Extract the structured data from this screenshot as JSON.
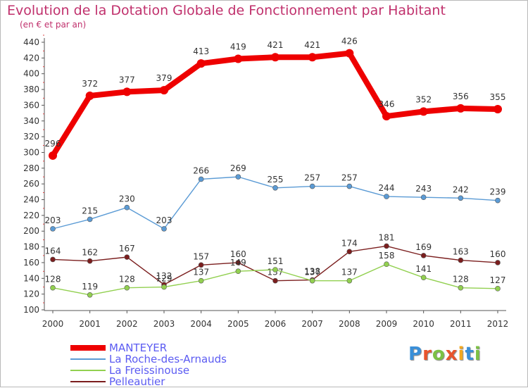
{
  "header": {
    "title": "Evolution de la Dotation Globale de Fonctionnement par Habitant",
    "subtitle": "(en € et par an)"
  },
  "logo": {
    "text": "Proxiti",
    "colors": [
      "#3a8fd8",
      "#e8542c",
      "#7cc144",
      "#e8542c",
      "#f3a81f",
      "#3a8fd8",
      "#7cc144"
    ]
  },
  "chart_data": {
    "type": "line",
    "title": "Evolution de la Dotation Globale de Fonctionnement par Habitant",
    "subtitle": "(en € et par an)",
    "xlabel": "",
    "ylabel": "",
    "x": [
      "2000",
      "2001",
      "2002",
      "2003",
      "2004",
      "2005",
      "2006",
      "2007",
      "2008",
      "2009",
      "2010",
      "2011",
      "2012"
    ],
    "ylim": [
      100,
      440
    ],
    "yticks": [
      100,
      120,
      140,
      160,
      180,
      200,
      220,
      240,
      260,
      280,
      300,
      320,
      340,
      360,
      380,
      400,
      420,
      440
    ],
    "grid": false,
    "legend_position": "bottom-left",
    "series": [
      {
        "name": "MANTEYER",
        "color": "#ee0000",
        "values": [
          296,
          372,
          377,
          379,
          413,
          419,
          421,
          421,
          426,
          346,
          352,
          356,
          355
        ],
        "labels": [
          "296",
          "372",
          "377",
          "379",
          "413",
          "419",
          "421",
          "421",
          "426",
          "346",
          "352",
          "356",
          "355"
        ]
      },
      {
        "name": "La Roche-des-Arnauds",
        "color": "#5b9bd5",
        "values": [
          203,
          215,
          230,
          203,
          266,
          269,
          255,
          257,
          257,
          244,
          243,
          242,
          239
        ],
        "labels": [
          "203",
          "215",
          "230",
          "203",
          "266",
          "269",
          "255",
          "257",
          "257",
          "244",
          "243",
          "242",
          "239"
        ]
      },
      {
        "name": "La Freissinouse",
        "color": "#92d050",
        "values": [
          128,
          119,
          128,
          129,
          137,
          149,
          151,
          137,
          137,
          158,
          141,
          128,
          127
        ],
        "labels": [
          "128",
          "119",
          "128",
          "129",
          "137",
          "149",
          "151",
          "137",
          "137",
          "158",
          "141",
          "128",
          "127"
        ]
      },
      {
        "name": "Pelleautier",
        "color": "#7b1e1e",
        "values": [
          164,
          162,
          167,
          132,
          157,
          160,
          137,
          138,
          174,
          181,
          169,
          163,
          160
        ],
        "labels": [
          "164",
          "162",
          "167",
          "132",
          "157",
          "160",
          "137",
          "138",
          "174",
          "181",
          "169",
          "163",
          "160"
        ]
      }
    ]
  }
}
